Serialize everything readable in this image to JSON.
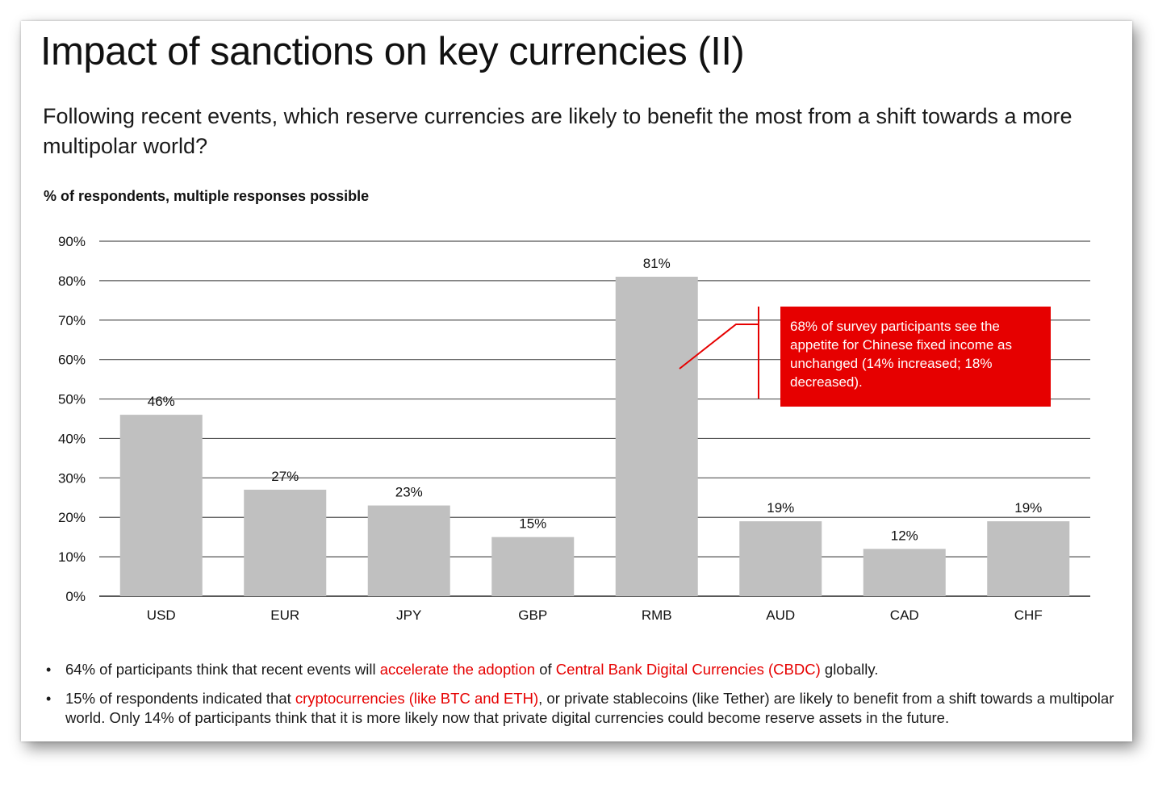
{
  "title": "Impact of sanctions on key currencies (II)",
  "subtitle": "Following recent events, which reserve currencies are likely to benefit the most from a shift towards a more multipolar world?",
  "unit_label": "% of respondents, multiple responses possible",
  "callout": "68% of survey participants see the appetite for Chinese fixed income as unchanged (14% increased; 18% decreased).",
  "bullets": [
    {
      "parts": [
        {
          "text": "64% of participants think that recent events will ",
          "red": false
        },
        {
          "text": "accelerate the adoption",
          "red": true
        },
        {
          "text": " of ",
          "red": false
        },
        {
          "text": "Central Bank Digital Currencies (CBDC)",
          "red": true
        },
        {
          "text": " globally.",
          "red": false
        }
      ]
    },
    {
      "parts": [
        {
          "text": "15% of respondents indicated that ",
          "red": false
        },
        {
          "text": "cryptocurrencies (like BTC and ETH)",
          "red": true
        },
        {
          "text": ", or private stablecoins (like Tether) are likely to benefit from a shift towards a multipolar world. Only 14% of participants think that it is more likely now that private digital currencies could become reserve assets in the future.",
          "red": false
        }
      ]
    }
  ],
  "colors": {
    "bar": "#c0c0c0",
    "accent": "#e60000",
    "grid": "#555555"
  },
  "chart_data": {
    "type": "bar",
    "categories": [
      "USD",
      "EUR",
      "JPY",
      "GBP",
      "RMB",
      "AUD",
      "CAD",
      "CHF"
    ],
    "values": [
      46,
      27,
      23,
      15,
      81,
      19,
      12,
      19
    ],
    "data_labels": [
      "46%",
      "27%",
      "23%",
      "15%",
      "81%",
      "19%",
      "12%",
      "19%"
    ],
    "ylim": [
      0,
      90
    ],
    "yticks": [
      0,
      10,
      20,
      30,
      40,
      50,
      60,
      70,
      80,
      90
    ],
    "ytick_labels": [
      "0%",
      "10%",
      "20%",
      "30%",
      "40%",
      "50%",
      "60%",
      "70%",
      "80%",
      "90%"
    ],
    "grid": true,
    "legend": "none"
  }
}
